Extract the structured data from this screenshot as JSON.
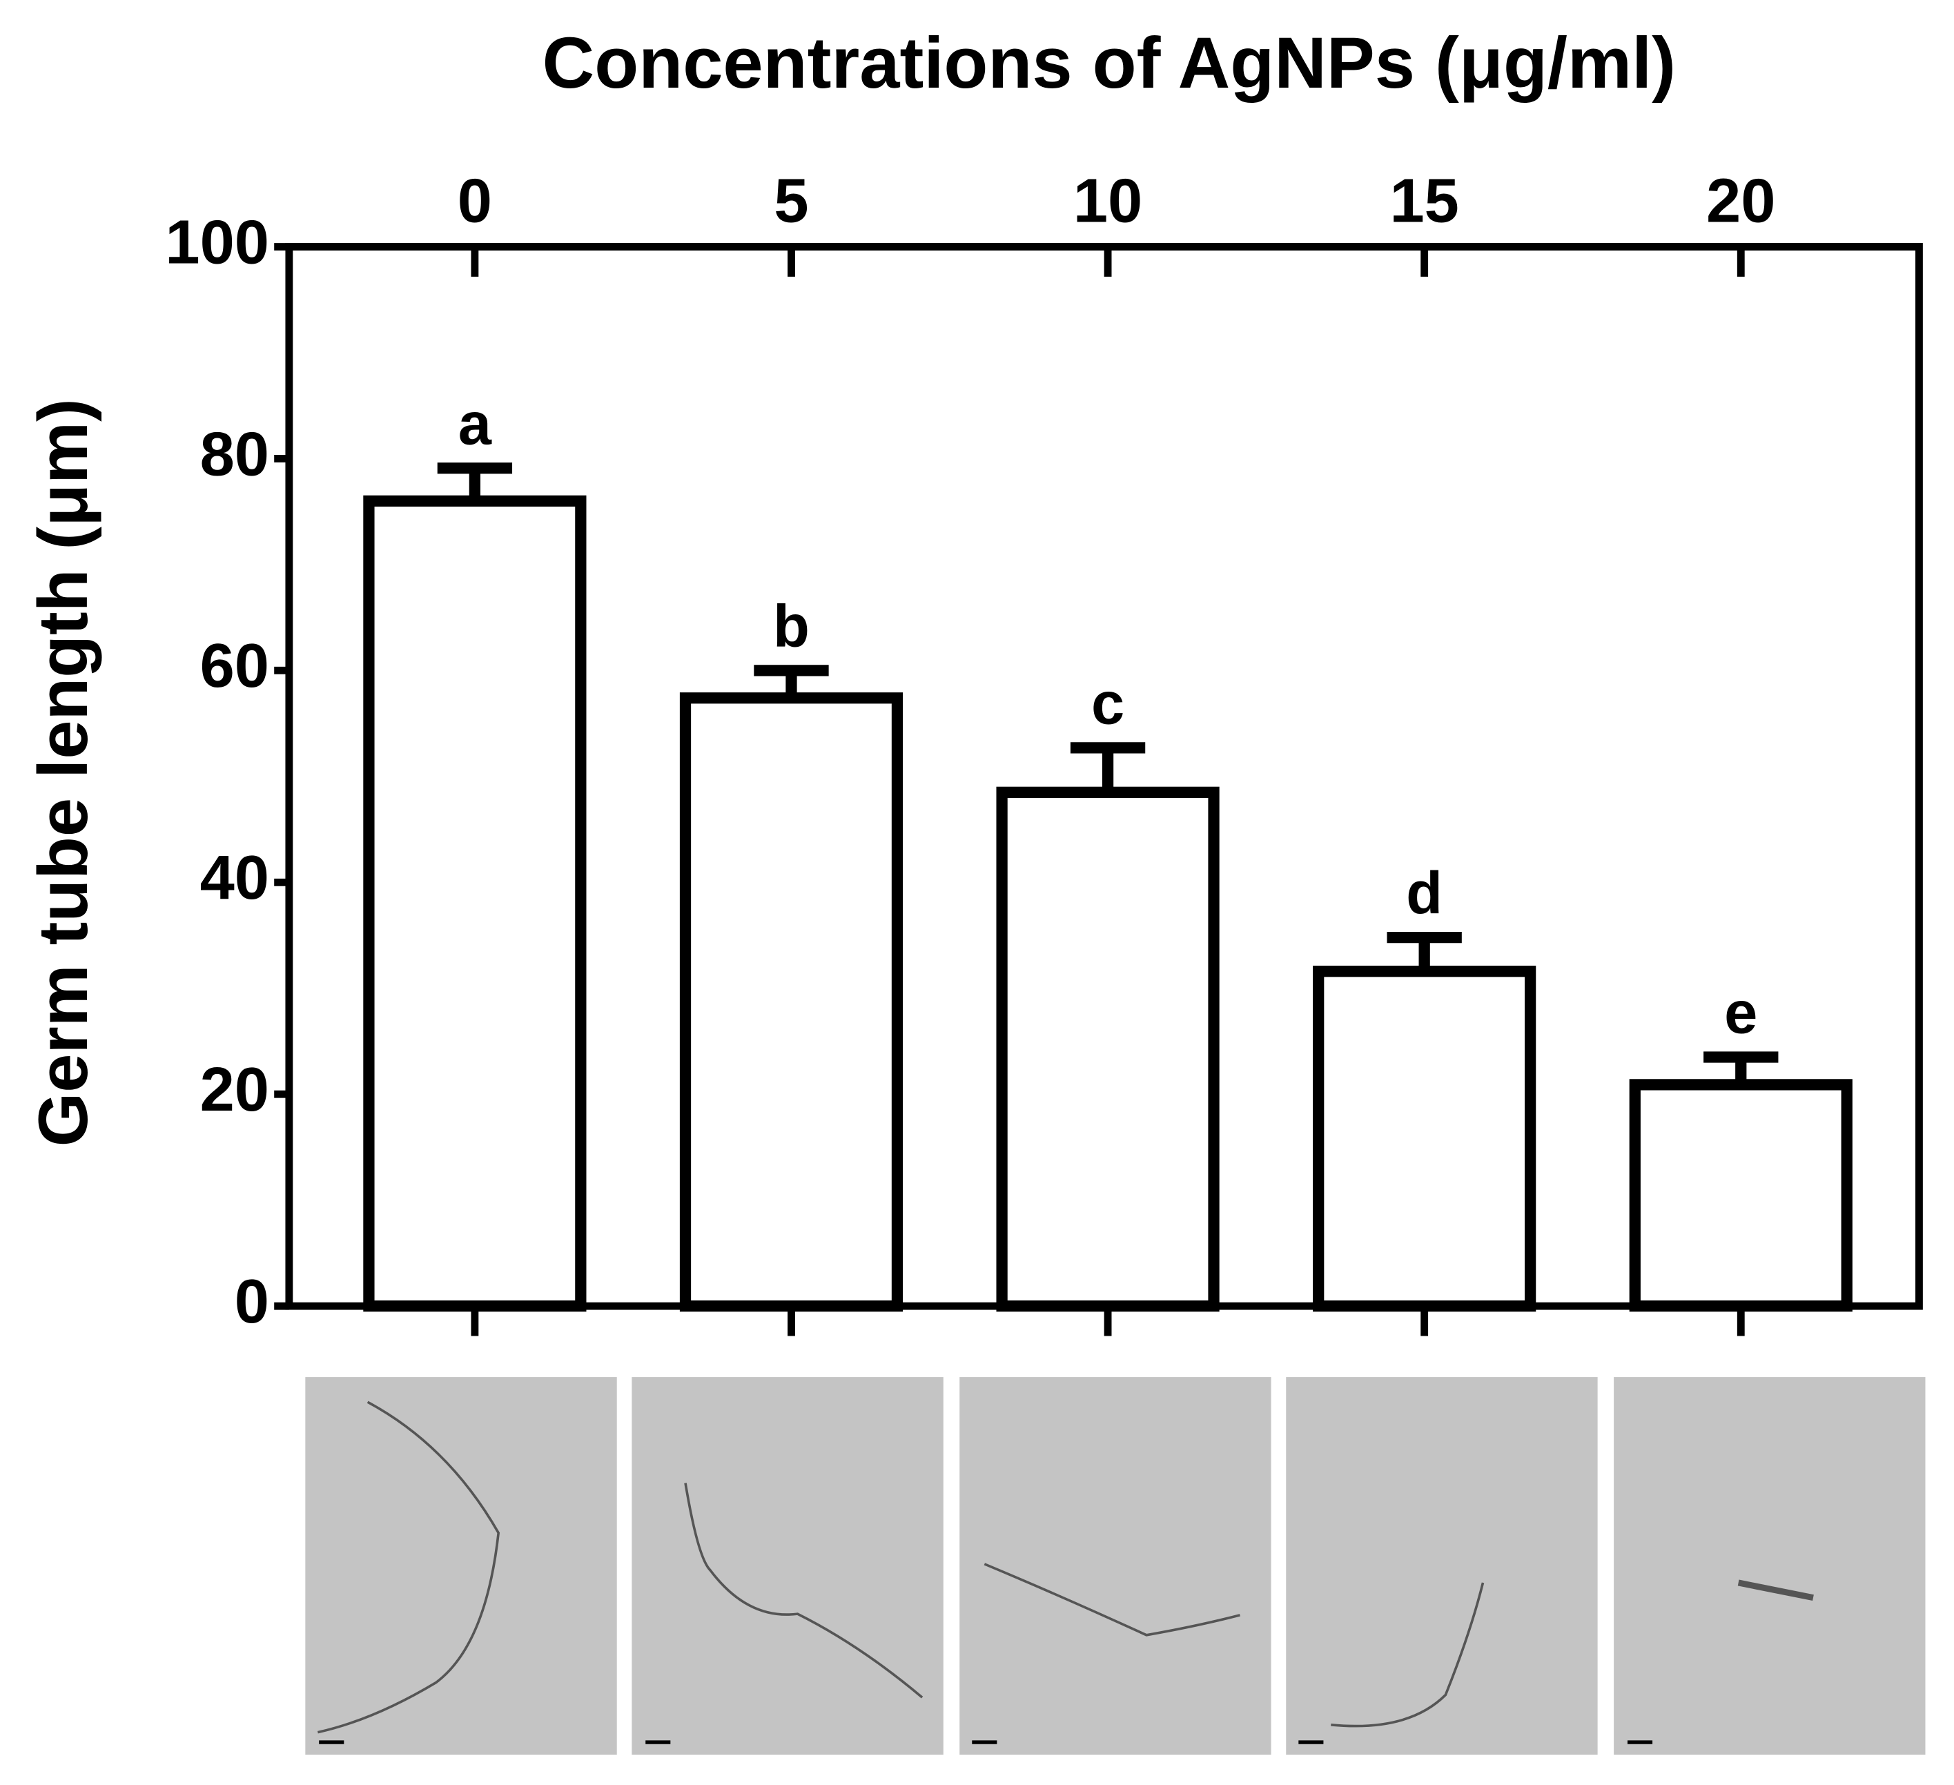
{
  "chart_data": {
    "type": "bar",
    "title": "Concentrations of AgNPs (μg/ml)",
    "y_label": "Germ tube length (μm)",
    "categories": [
      "0",
      "5",
      "10",
      "15",
      "20"
    ],
    "values": [
      76,
      57.4,
      48.5,
      31.6,
      20.9
    ],
    "errors": [
      3.1,
      2.6,
      4.2,
      3.2,
      2.6
    ],
    "labels": [
      "a",
      "b",
      "c",
      "d",
      "e"
    ],
    "color": "#ffffff",
    "edge_color": "#000000",
    "ylim": [
      0,
      100
    ],
    "yticks": [
      0,
      20,
      40,
      60,
      80,
      100
    ],
    "grid": false
  }
}
